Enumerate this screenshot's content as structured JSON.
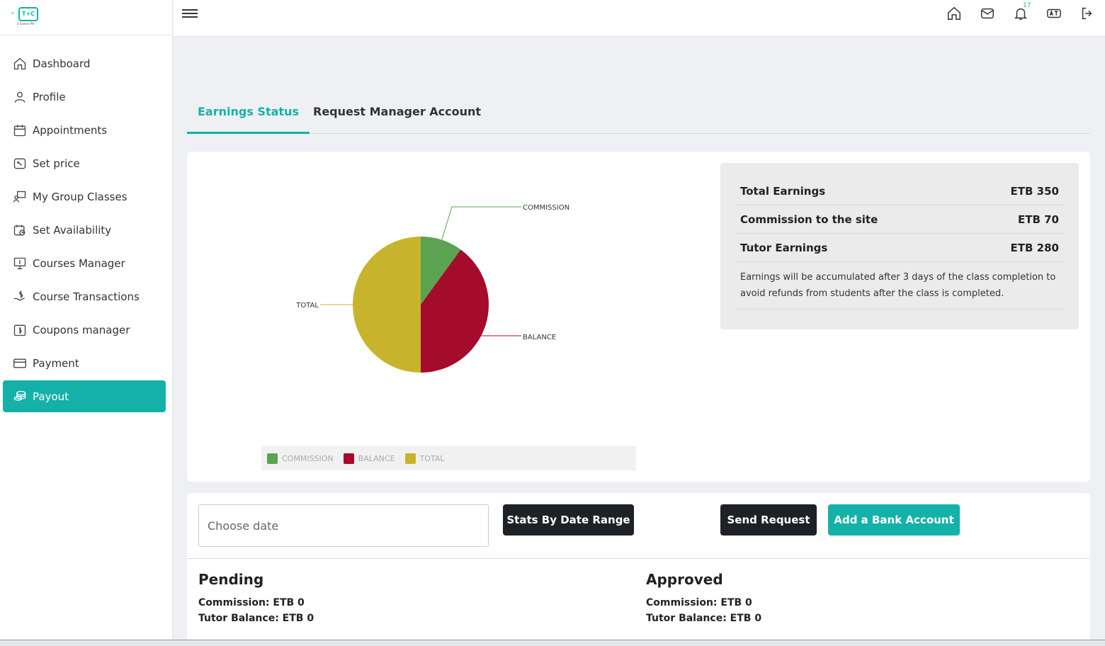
{
  "logo": {
    "prefix": "e-",
    "mark": "T+C",
    "subtitle": "a Sainee Pfe"
  },
  "sidebar": {
    "items": [
      {
        "label": "Dashboard",
        "icon": "home-icon"
      },
      {
        "label": "Profile",
        "icon": "user-icon"
      },
      {
        "label": "Appointments",
        "icon": "calendar-icon"
      },
      {
        "label": "Set price",
        "icon": "price-tag-icon"
      },
      {
        "label": "My Group Classes",
        "icon": "group-class-icon"
      },
      {
        "label": "Set Availability",
        "icon": "calendar-clock-icon"
      },
      {
        "label": "Courses Manager",
        "icon": "monitor-book-icon"
      },
      {
        "label": "Course Transactions",
        "icon": "hand-dollar-icon"
      },
      {
        "label": "Coupons manager",
        "icon": "coupon-icon"
      },
      {
        "label": "Payment",
        "icon": "credit-card-icon"
      },
      {
        "label": "Payout",
        "icon": "coins-icon",
        "active": true
      }
    ]
  },
  "topbar": {
    "notification_count": "17"
  },
  "tabs": [
    {
      "label": "Earnings Status",
      "active": true
    },
    {
      "label": "Request Manager Account",
      "active": false
    }
  ],
  "chart_data": {
    "type": "pie",
    "slices": [
      {
        "label": "COMMISSION",
        "value": 70,
        "color": "#5ba350"
      },
      {
        "label": "BALANCE",
        "value": 280,
        "color": "#a50b2b"
      },
      {
        "label": "TOTAL",
        "value": 350,
        "color": "#c8b32c"
      }
    ],
    "legend": [
      "COMMISSION",
      "BALANCE",
      "TOTAL"
    ],
    "legend_position": "bottom"
  },
  "summary": {
    "total_earnings_label": "Total Earnings",
    "total_earnings_value": "ETB 350",
    "commission_label": "Commission to the site",
    "commission_value": "ETB 70",
    "tutor_label": "Tutor Earnings",
    "tutor_value": "ETB 280",
    "note": "Earnings will be accumulated after 3 days of the class completion to avoid refunds from students after the class is completed."
  },
  "controls": {
    "date_placeholder": "Choose date",
    "stats_button": "Stats By Date Range",
    "send_button": "Send Request",
    "bank_button": "Add a Bank Account"
  },
  "pending": {
    "title": "Pending",
    "commission": "Commission: ETB 0",
    "balance": "Tutor Balance: ETB 0"
  },
  "approved": {
    "title": "Approved",
    "commission": "Commission: ETB 0",
    "balance": "Tutor Balance: ETB 0"
  }
}
